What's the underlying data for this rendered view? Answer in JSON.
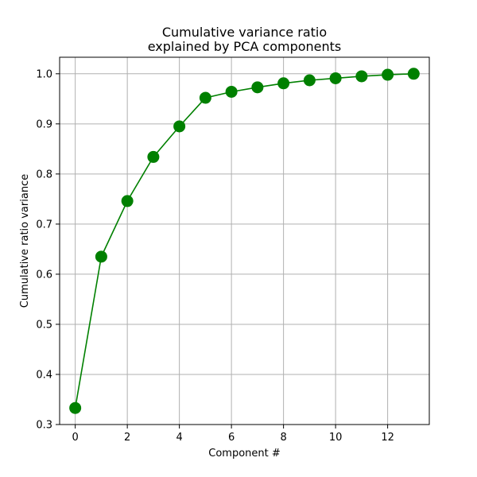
{
  "chart_data": {
    "type": "line",
    "title_lines": [
      "Cumulative variance ratio",
      "explained by PCA components"
    ],
    "xlabel": "Component #",
    "ylabel": "Cumulative ratio variance",
    "xlim": [
      -0.6,
      13.6
    ],
    "ylim": [
      0.3,
      1.033
    ],
    "x_ticks": [
      0,
      2,
      4,
      6,
      8,
      10,
      12
    ],
    "x_tick_labels": [
      "0",
      "2",
      "4",
      "6",
      "8",
      "10",
      "12"
    ],
    "y_ticks": [
      0.3,
      0.4,
      0.5,
      0.6,
      0.7,
      0.8,
      0.9,
      1.0
    ],
    "y_tick_labels": [
      "0.3",
      "0.4",
      "0.5",
      "0.6",
      "0.7",
      "0.8",
      "0.9",
      "1.0"
    ],
    "grid": true,
    "series": [
      {
        "color": "#008000",
        "marker": "circle",
        "x": [
          0,
          1,
          2,
          3,
          4,
          5,
          6,
          7,
          8,
          9,
          10,
          11,
          12,
          13
        ],
        "values": [
          0.333,
          0.635,
          0.746,
          0.834,
          0.895,
          0.952,
          0.964,
          0.973,
          0.981,
          0.987,
          0.991,
          0.995,
          0.998,
          1.0
        ]
      }
    ]
  }
}
